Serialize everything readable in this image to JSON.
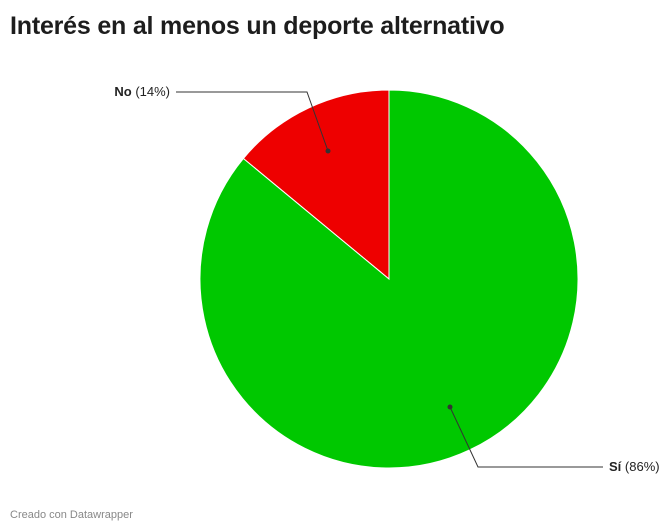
{
  "title": "Interés en al menos un deporte alternativo",
  "footer": "Creado con Datawrapper",
  "chart_data": {
    "type": "pie",
    "title": "Interés en al menos un deporte alternativo",
    "slices": [
      {
        "label": "No",
        "value": 14,
        "display": "(14%)",
        "color": "#ee0000"
      },
      {
        "label": "Sí",
        "value": 86,
        "display": "(86%)",
        "color": "#00c800"
      }
    ],
    "start": "12 o'clock",
    "direction": "counterclockwise from No"
  }
}
